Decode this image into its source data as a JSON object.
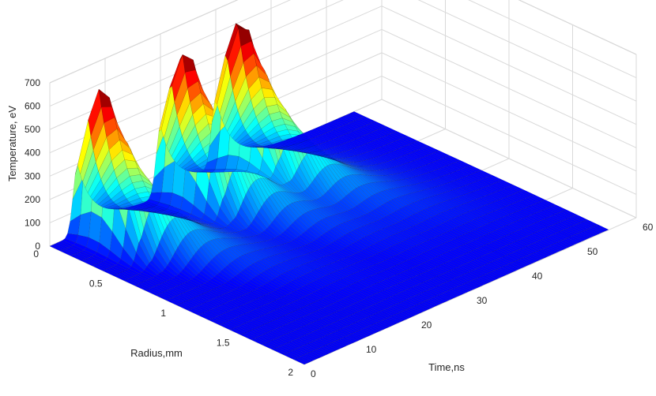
{
  "chart_data": {
    "type": "surface",
    "zlabel": "Temperature, eV",
    "xlabel": "Radius,mm",
    "ylabel": "Time,ns",
    "xlim": [
      0,
      2
    ],
    "ylim": [
      0,
      60
    ],
    "zlim": [
      0,
      700
    ],
    "grid": true,
    "colormap": "jet",
    "x_ticks": [
      "0",
      "0.5",
      "1",
      "1.5",
      "2"
    ],
    "y_ticks": [
      "0",
      "10",
      "20",
      "30",
      "40",
      "50",
      "60"
    ],
    "z_ticks": [
      "0",
      "100",
      "200",
      "300",
      "400",
      "500",
      "600",
      "700"
    ],
    "x_tick_values": [
      0,
      0.5,
      1,
      1.5,
      2
    ],
    "y_tick_values": [
      0,
      10,
      20,
      30,
      40,
      50,
      60
    ],
    "z_tick_values": [
      0,
      100,
      200,
      300,
      400,
      500,
      600,
      700
    ],
    "series": [
      {
        "pulse_peak_time_ns": 5,
        "peak_temperature_eV": 685,
        "peak_radius_mm": 0.2
      },
      {
        "pulse_peak_time_ns": 20,
        "peak_temperature_eV": 690,
        "peak_radius_mm": 0.2
      },
      {
        "pulse_peak_time_ns": 30,
        "peak_temperature_eV": 690,
        "peak_radius_mm": 0.2
      }
    ],
    "surface_time_extent_ns": [
      0,
      55
    ],
    "colors": {
      "low": "#00008f",
      "mid": "#00ffff",
      "high": "#800000"
    }
  }
}
